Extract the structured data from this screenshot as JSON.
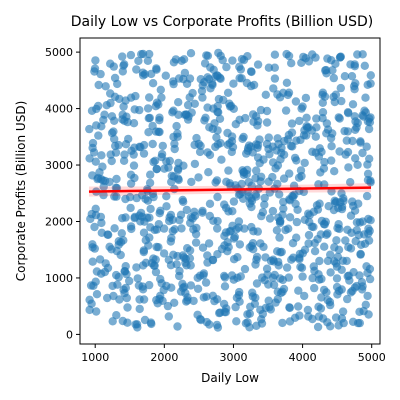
{
  "chart_data": {
    "type": "scatter",
    "title": "Daily Low vs Corporate Profits (Billion USD)",
    "xlabel": "Daily Low",
    "ylabel": "Corporate Profits (Billion USD)",
    "xlim": [
      780,
      5120
    ],
    "ylim": [
      -170,
      5250
    ],
    "xticks": [
      1000,
      2000,
      3000,
      4000,
      5000
    ],
    "yticks": [
      0,
      1000,
      2000,
      3000,
      4000,
      5000
    ],
    "grid": false,
    "point_color": "#1f77b4",
    "point_alpha": 0.6,
    "n_points": 1000,
    "x_range": [
      910,
      4990
    ],
    "y_range": [
      120,
      5000
    ],
    "regression": {
      "color": "#ff0000",
      "x": [
        910,
        4990
      ],
      "y": [
        2530,
        2600
      ],
      "ci_halfwidth": [
        90,
        80
      ]
    }
  }
}
